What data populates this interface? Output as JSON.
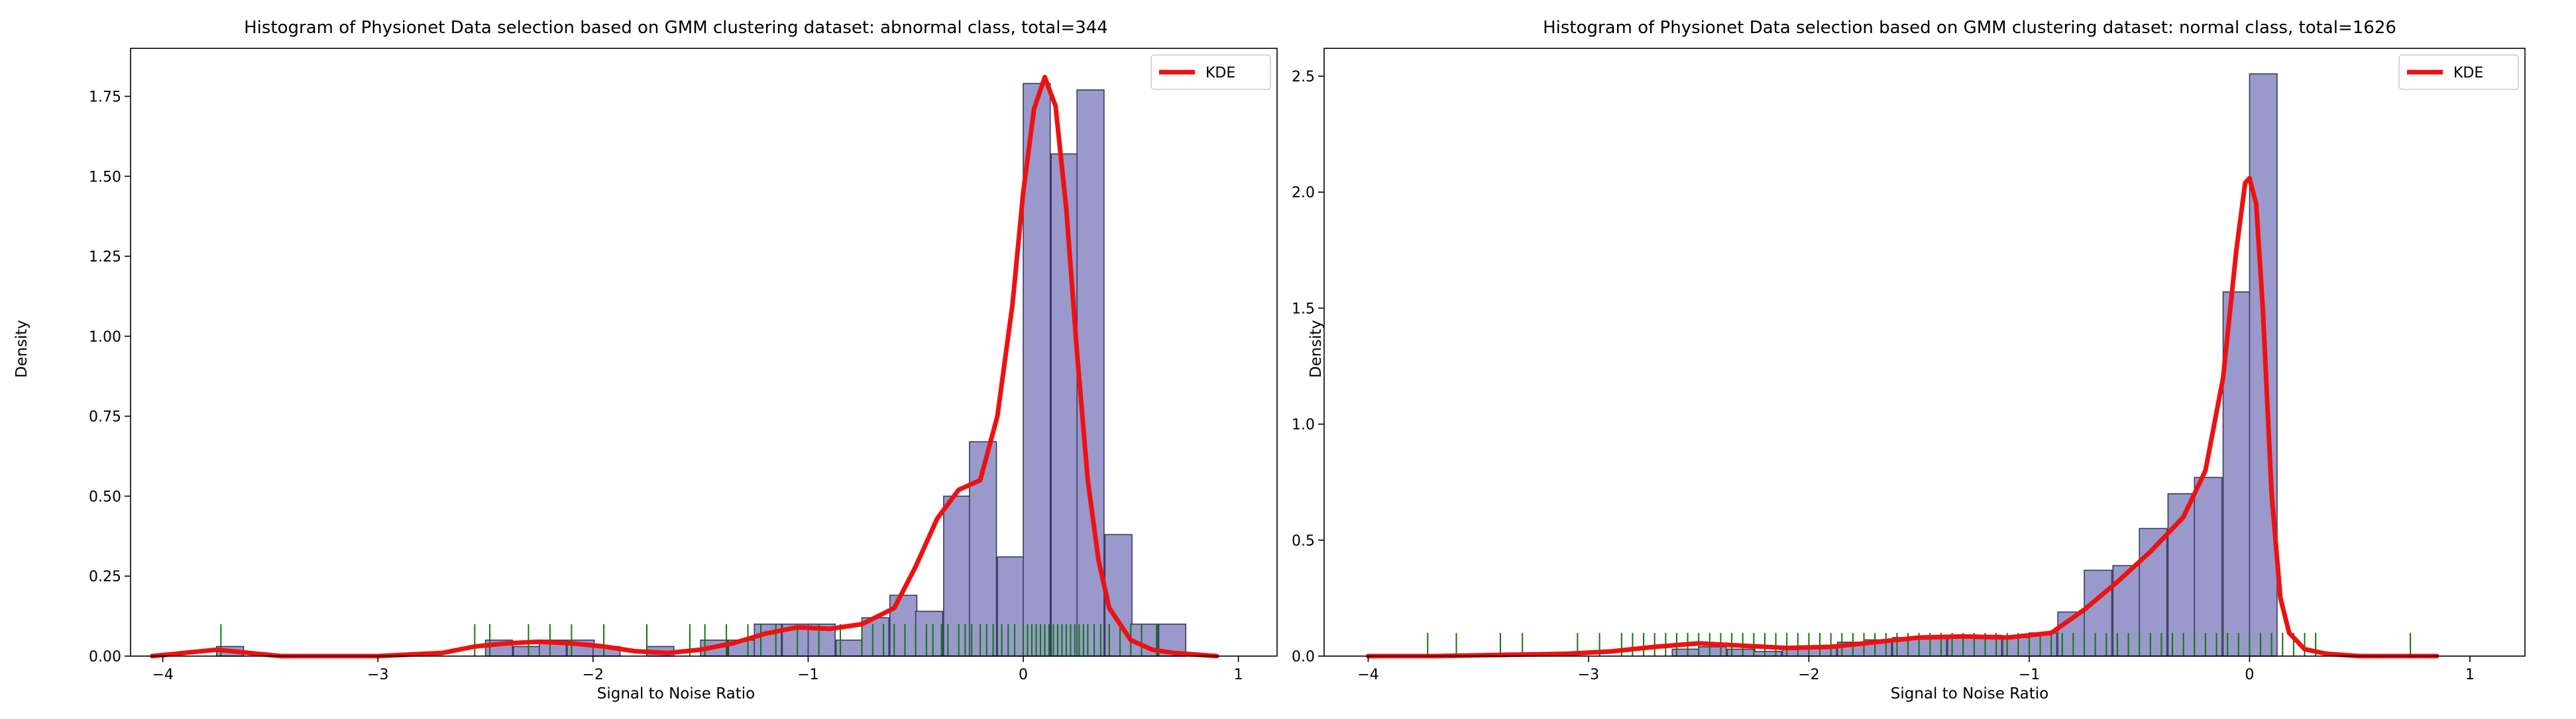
{
  "colors": {
    "bar_fill": "#9999cc",
    "bar_edge": "#3a3a5c",
    "kde": "#ee1111",
    "rug": "#0a7a0a",
    "frame": "#000000"
  },
  "chart_data": [
    {
      "type": "histogram",
      "title": "Histogram of Physionet Data selection based on GMM clustering dataset: abnormal class, total=344",
      "xlabel": "Signal to Noise Ratio",
      "ylabel": "Density",
      "xlim": [
        -4.15,
        1.18
      ],
      "ylim": [
        0,
        1.9
      ],
      "xticks": [
        -4,
        -3,
        -2,
        -1,
        0,
        1
      ],
      "xtick_labels": [
        "−4",
        "−3",
        "−2",
        "−1",
        "0",
        "1"
      ],
      "yticks": [
        0,
        0.25,
        0.5,
        0.75,
        1.0,
        1.25,
        1.5,
        1.75
      ],
      "ytick_labels": [
        "0.00",
        "0.25",
        "0.50",
        "0.75",
        "1.00",
        "1.25",
        "1.50",
        "1.75"
      ],
      "grid": false,
      "legend": {
        "label": "KDE",
        "position": "top-right"
      },
      "bin_width": 0.1255,
      "bins": [
        {
          "x": -3.75,
          "h": 0.03
        },
        {
          "x": -2.5,
          "h": 0.05
        },
        {
          "x": -2.37,
          "h": 0.03
        },
        {
          "x": -2.25,
          "h": 0.05
        },
        {
          "x": -2.12,
          "h": 0.05
        },
        {
          "x": -2.0,
          "h": 0.03
        },
        {
          "x": -1.75,
          "h": 0.03
        },
        {
          "x": -1.5,
          "h": 0.05
        },
        {
          "x": -1.37,
          "h": 0.05
        },
        {
          "x": -1.25,
          "h": 0.1
        },
        {
          "x": -1.12,
          "h": 0.1
        },
        {
          "x": -1.0,
          "h": 0.1
        },
        {
          "x": -0.87,
          "h": 0.05
        },
        {
          "x": -0.75,
          "h": 0.12
        },
        {
          "x": -0.62,
          "h": 0.19
        },
        {
          "x": -0.5,
          "h": 0.14
        },
        {
          "x": -0.37,
          "h": 0.5
        },
        {
          "x": -0.25,
          "h": 0.67
        },
        {
          "x": -0.12,
          "h": 0.31
        },
        {
          "x": 0.0,
          "h": 1.79
        },
        {
          "x": 0.13,
          "h": 1.57
        },
        {
          "x": 0.25,
          "h": 1.77
        },
        {
          "x": 0.38,
          "h": 0.38
        },
        {
          "x": 0.5,
          "h": 0.1
        },
        {
          "x": 0.63,
          "h": 0.1
        }
      ],
      "kde": {
        "x": [
          -4.05,
          -3.9,
          -3.75,
          -3.6,
          -3.45,
          -3.3,
          -3.0,
          -2.7,
          -2.55,
          -2.4,
          -2.25,
          -2.1,
          -1.95,
          -1.8,
          -1.65,
          -1.5,
          -1.35,
          -1.2,
          -1.05,
          -0.9,
          -0.75,
          -0.6,
          -0.5,
          -0.4,
          -0.3,
          -0.2,
          -0.12,
          -0.05,
          0.0,
          0.05,
          0.1,
          0.15,
          0.2,
          0.25,
          0.3,
          0.35,
          0.4,
          0.5,
          0.6,
          0.7,
          0.8,
          0.9
        ],
        "y": [
          0.0,
          0.01,
          0.02,
          0.01,
          0.0,
          0.0,
          0.0,
          0.01,
          0.03,
          0.04,
          0.045,
          0.04,
          0.03,
          0.015,
          0.01,
          0.02,
          0.04,
          0.07,
          0.09,
          0.085,
          0.1,
          0.15,
          0.28,
          0.43,
          0.52,
          0.55,
          0.75,
          1.1,
          1.45,
          1.71,
          1.81,
          1.72,
          1.4,
          0.95,
          0.55,
          0.3,
          0.15,
          0.05,
          0.02,
          0.01,
          0.005,
          0.0
        ]
      },
      "rug": [
        -3.73,
        -2.55,
        -2.48,
        -2.3,
        -2.2,
        -2.1,
        -1.95,
        -1.75,
        -1.55,
        -1.48,
        -1.38,
        -1.28,
        -1.22,
        -1.15,
        -1.05,
        -0.95,
        -0.85,
        -0.75,
        -0.7,
        -0.65,
        -0.6,
        -0.55,
        -0.5,
        -0.45,
        -0.42,
        -0.38,
        -0.35,
        -0.3,
        -0.27,
        -0.24,
        -0.2,
        -0.17,
        -0.14,
        -0.1,
        -0.07,
        -0.04,
        0.0,
        0.02,
        0.04,
        0.06,
        0.08,
        0.1,
        0.12,
        0.14,
        0.16,
        0.18,
        0.2,
        0.22,
        0.24,
        0.26,
        0.28,
        0.3,
        0.33,
        0.36,
        0.4,
        0.45,
        0.5,
        0.55,
        0.62
      ]
    },
    {
      "type": "histogram",
      "title": "Histogram of Physionet Data selection based on GMM clustering dataset: normal class, total=1626",
      "xlabel": "Signal to Noise Ratio",
      "ylabel": "Density",
      "xlim": [
        -4.2,
        1.25
      ],
      "ylim": [
        0,
        2.62
      ],
      "xticks": [
        -4,
        -3,
        -2,
        -1,
        0,
        1
      ],
      "xtick_labels": [
        "−4",
        "−3",
        "−2",
        "−1",
        "0",
        "1"
      ],
      "yticks": [
        0,
        0.5,
        1.0,
        1.5,
        2.0,
        2.5
      ],
      "ytick_labels": [
        "0.0",
        "0.5",
        "1.0",
        "1.5",
        "2.0",
        "2.5"
      ],
      "grid": false,
      "legend": {
        "label": "KDE",
        "position": "top-right"
      },
      "bin_width": 0.125,
      "bins": [
        {
          "x": -2.62,
          "h": 0.03
        },
        {
          "x": -2.5,
          "h": 0.04
        },
        {
          "x": -2.37,
          "h": 0.03
        },
        {
          "x": -2.25,
          "h": 0.02
        },
        {
          "x": -2.12,
          "h": 0.03
        },
        {
          "x": -2.0,
          "h": 0.04
        },
        {
          "x": -1.87,
          "h": 0.06
        },
        {
          "x": -1.75,
          "h": 0.07
        },
        {
          "x": -1.62,
          "h": 0.08
        },
        {
          "x": -1.5,
          "h": 0.08
        },
        {
          "x": -1.37,
          "h": 0.09
        },
        {
          "x": -1.25,
          "h": 0.09
        },
        {
          "x": -1.12,
          "h": 0.08
        },
        {
          "x": -1.0,
          "h": 0.1
        },
        {
          "x": -0.87,
          "h": 0.19
        },
        {
          "x": -0.75,
          "h": 0.37
        },
        {
          "x": -0.62,
          "h": 0.39
        },
        {
          "x": -0.5,
          "h": 0.55
        },
        {
          "x": -0.37,
          "h": 0.7
        },
        {
          "x": -0.25,
          "h": 0.77
        },
        {
          "x": -0.12,
          "h": 1.57
        },
        {
          "x": 0.0,
          "h": 2.51
        }
      ],
      "kde": {
        "x": [
          -4.0,
          -3.7,
          -3.4,
          -3.1,
          -2.9,
          -2.7,
          -2.5,
          -2.3,
          -2.1,
          -1.9,
          -1.7,
          -1.5,
          -1.3,
          -1.1,
          -0.9,
          -0.75,
          -0.6,
          -0.45,
          -0.3,
          -0.2,
          -0.12,
          -0.06,
          -0.02,
          0.0,
          0.03,
          0.06,
          0.1,
          0.14,
          0.18,
          0.25,
          0.35,
          0.5,
          0.7,
          0.85
        ],
        "y": [
          0.0,
          0.0,
          0.005,
          0.01,
          0.02,
          0.04,
          0.055,
          0.045,
          0.035,
          0.04,
          0.06,
          0.08,
          0.085,
          0.08,
          0.1,
          0.2,
          0.32,
          0.45,
          0.6,
          0.8,
          1.2,
          1.75,
          2.04,
          2.06,
          1.95,
          1.5,
          0.7,
          0.25,
          0.1,
          0.03,
          0.01,
          0.0,
          0.0,
          0.0
        ]
      },
      "rug": [
        -3.73,
        -3.6,
        -3.4,
        -3.3,
        -3.05,
        -2.95,
        -2.85,
        -2.8,
        -2.75,
        -2.7,
        -2.65,
        -2.6,
        -2.55,
        -2.5,
        -2.45,
        -2.4,
        -2.35,
        -2.3,
        -2.25,
        -2.2,
        -2.15,
        -2.1,
        -2.05,
        -2.0,
        -1.95,
        -1.9,
        -1.85,
        -1.8,
        -1.75,
        -1.7,
        -1.65,
        -1.6,
        -1.55,
        -1.5,
        -1.45,
        -1.4,
        -1.35,
        -1.3,
        -1.25,
        -1.2,
        -1.15,
        -1.1,
        -1.05,
        -1.0,
        -0.95,
        -0.9,
        -0.85,
        -0.8,
        -0.75,
        -0.7,
        -0.65,
        -0.6,
        -0.55,
        -0.5,
        -0.45,
        -0.4,
        -0.35,
        -0.3,
        -0.25,
        -0.2,
        -0.15,
        -0.1,
        -0.05,
        0.0,
        0.05,
        0.1,
        0.15,
        0.2,
        0.25,
        0.3,
        0.73
      ]
    }
  ]
}
